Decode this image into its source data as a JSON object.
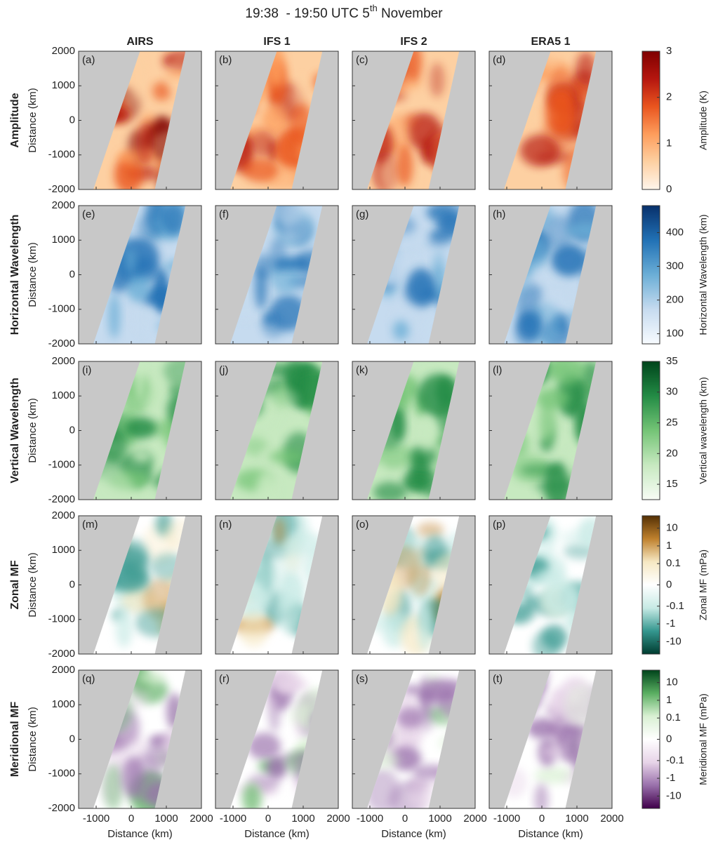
{
  "chart_data": {
    "type": "map-grid",
    "title": [
      "19:38  - 19:50 UTC 5",
      "th",
      " November"
    ],
    "columns": [
      "AIRS",
      "IFS 1",
      "IFS 2",
      "ERA5 1"
    ],
    "xlabel": "Distance (km)",
    "ylabel": "Distance (km)",
    "xlim": [
      -1500,
      2000
    ],
    "xticks": [
      -1000,
      0,
      1000,
      2000
    ],
    "ylim": [
      -2000,
      2000
    ],
    "yticks": [
      -2000,
      -1000,
      0,
      1000,
      2000
    ],
    "panel_labels": [
      "(a)",
      "(b)",
      "(c)",
      "(d)",
      "(e)",
      "(f)",
      "(g)",
      "(h)",
      "(i)",
      "(j)",
      "(k)",
      "(l)",
      "(m)",
      "(n)",
      "(o)",
      "(p)",
      "(q)",
      "(r)",
      "(s)",
      "(t)"
    ],
    "rows": [
      {
        "name": "Amplitude",
        "colorbar_label": "Amplitude (K)",
        "clim": [
          0,
          3
        ],
        "cticks": [
          0,
          1,
          2,
          3
        ],
        "colormap": [
          "#fff5eb",
          "#fdd0a2",
          "#fd9d5c",
          "#e9551f",
          "#b5160f",
          "#7f0000"
        ]
      },
      {
        "name": "Horizontal Wavelength",
        "colorbar_label": "Horizontal Wavelength (km)",
        "clim": [
          70,
          480
        ],
        "cticks": [
          100,
          200,
          300,
          400
        ],
        "colormap": [
          "#f7fbff",
          "#c6dbef",
          "#6baed6",
          "#2171b5",
          "#08306b"
        ]
      },
      {
        "name": "Vertical Wavelength",
        "colorbar_label": "Vertical wavelength (km)",
        "clim": [
          12.5,
          35
        ],
        "cticks": [
          15,
          20,
          25,
          30,
          35
        ],
        "colormap": [
          "#f7fcf5",
          "#c7e9c0",
          "#74c476",
          "#238b45",
          "#00441b"
        ]
      },
      {
        "name": "Zonal MF",
        "colorbar_label": "Zonal MF (mPa)",
        "clim": [
          -50,
          50
        ],
        "scale": "symlog",
        "linthresh": 0.1,
        "cticks": [
          -10,
          -1,
          -0.1,
          0,
          0.1,
          1,
          10
        ],
        "colormap": [
          "#003c30",
          "#35978f",
          "#c7eae5",
          "#ffffff",
          "#f6e8c3",
          "#bf812d",
          "#543005"
        ]
      },
      {
        "name": "Meridional MF",
        "colorbar_label": "Meridional MF (mPa)",
        "clim": [
          -50,
          50
        ],
        "scale": "symlog",
        "linthresh": 0.1,
        "cticks": [
          -10,
          -1,
          -0.1,
          0,
          0.1,
          1,
          10
        ],
        "colormap": [
          "#40004b",
          "#9970ab",
          "#e7d4e8",
          "#ffffff",
          "#d9f0d3",
          "#5aae61",
          "#00441b"
        ]
      }
    ]
  }
}
